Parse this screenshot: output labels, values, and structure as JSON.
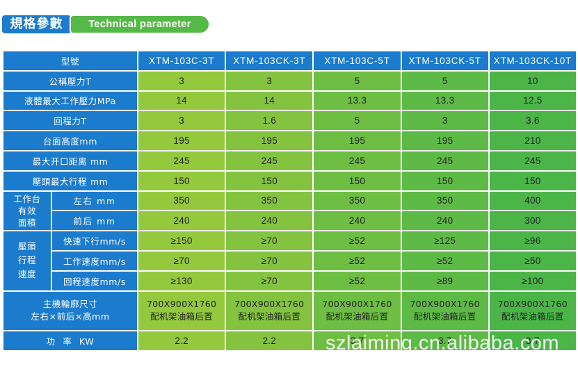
{
  "header": {
    "title_cn": "規格參數",
    "title_en": "Technical parameter"
  },
  "colors": {
    "blue": "#1b7bcc",
    "pill_green": "#55b948",
    "green_1": "#94c83d",
    "green_2": "#84c340",
    "green_3": "#6ebe44",
    "green_4": "#5eba46",
    "green_5": "#4bb548",
    "grid": "#ffffff",
    "value_text": "#222222",
    "label_text": "#ffffff"
  },
  "table": {
    "model_label": "型號",
    "models": [
      "XTM-103C-3T",
      "XTM-103CK-3T",
      "XTM-103C-5T",
      "XTM-103CK-5T",
      "XTM-103CK-10T"
    ],
    "rows": [
      {
        "label": "公稱壓力T",
        "values": [
          "3",
          "3",
          "5",
          "5",
          "10"
        ]
      },
      {
        "label": "液體最大工作壓力MPa",
        "values": [
          "14",
          "14",
          "13.3",
          "13.3",
          "12.5"
        ]
      },
      {
        "label": "回程力T",
        "values": [
          "3",
          "1.6",
          "5",
          "3",
          "3.6"
        ]
      },
      {
        "label": "台面高度mm",
        "values": [
          "195",
          "195",
          "195",
          "195",
          "210"
        ]
      },
      {
        "label": "最大开口距离 mm",
        "values": [
          "245",
          "245",
          "245",
          "245",
          "245"
        ]
      },
      {
        "label": "壓頭最大行程 mm",
        "values": [
          "150",
          "150",
          "150",
          "150",
          "150"
        ]
      }
    ],
    "worktable": {
      "group_lines": [
        "工作台",
        "有效",
        "面積"
      ],
      "rows": [
        {
          "label": "左右 mm",
          "values": [
            "350",
            "350",
            "350",
            "350",
            "400"
          ]
        },
        {
          "label": "前后 mm",
          "values": [
            "240",
            "240",
            "240",
            "240",
            "300"
          ]
        }
      ]
    },
    "ram_speed": {
      "group_lines": [
        "壓頭",
        "行程",
        "速度"
      ],
      "rows": [
        {
          "label": "快速下行mm/s",
          "values": [
            "≥150",
            "≥70",
            "≥52",
            "≥125",
            "≥96"
          ]
        },
        {
          "label": "工作速度mm/s",
          "values": [
            "≥70",
            "≥70",
            "≥52",
            "≥52",
            "≥50"
          ]
        },
        {
          "label": "回程速度mm/s",
          "values": [
            "≥130",
            "≥70",
            "≥52",
            "≥89",
            "≥100"
          ]
        }
      ]
    },
    "dimensions": {
      "label_lines": [
        "主機輪廓尺寸",
        "左右×前后×高mm"
      ],
      "values": [
        [
          "700X900X1760",
          "配机架油箱后置"
        ],
        [
          "700X900X1760",
          "配机架油箱后置"
        ],
        [
          "700X900X1760",
          "配机架油箱后置"
        ],
        [
          "700X900X1760",
          "配机架油箱后置"
        ],
        [
          "700X900X1760",
          "配机架油箱后置"
        ]
      ]
    },
    "power": {
      "label": "功 率 KW",
      "values": [
        "2.2",
        "2.2",
        "3.7",
        "3.7",
        "3.7"
      ]
    }
  },
  "watermark": "szlaiming.cn.alibaba.com"
}
